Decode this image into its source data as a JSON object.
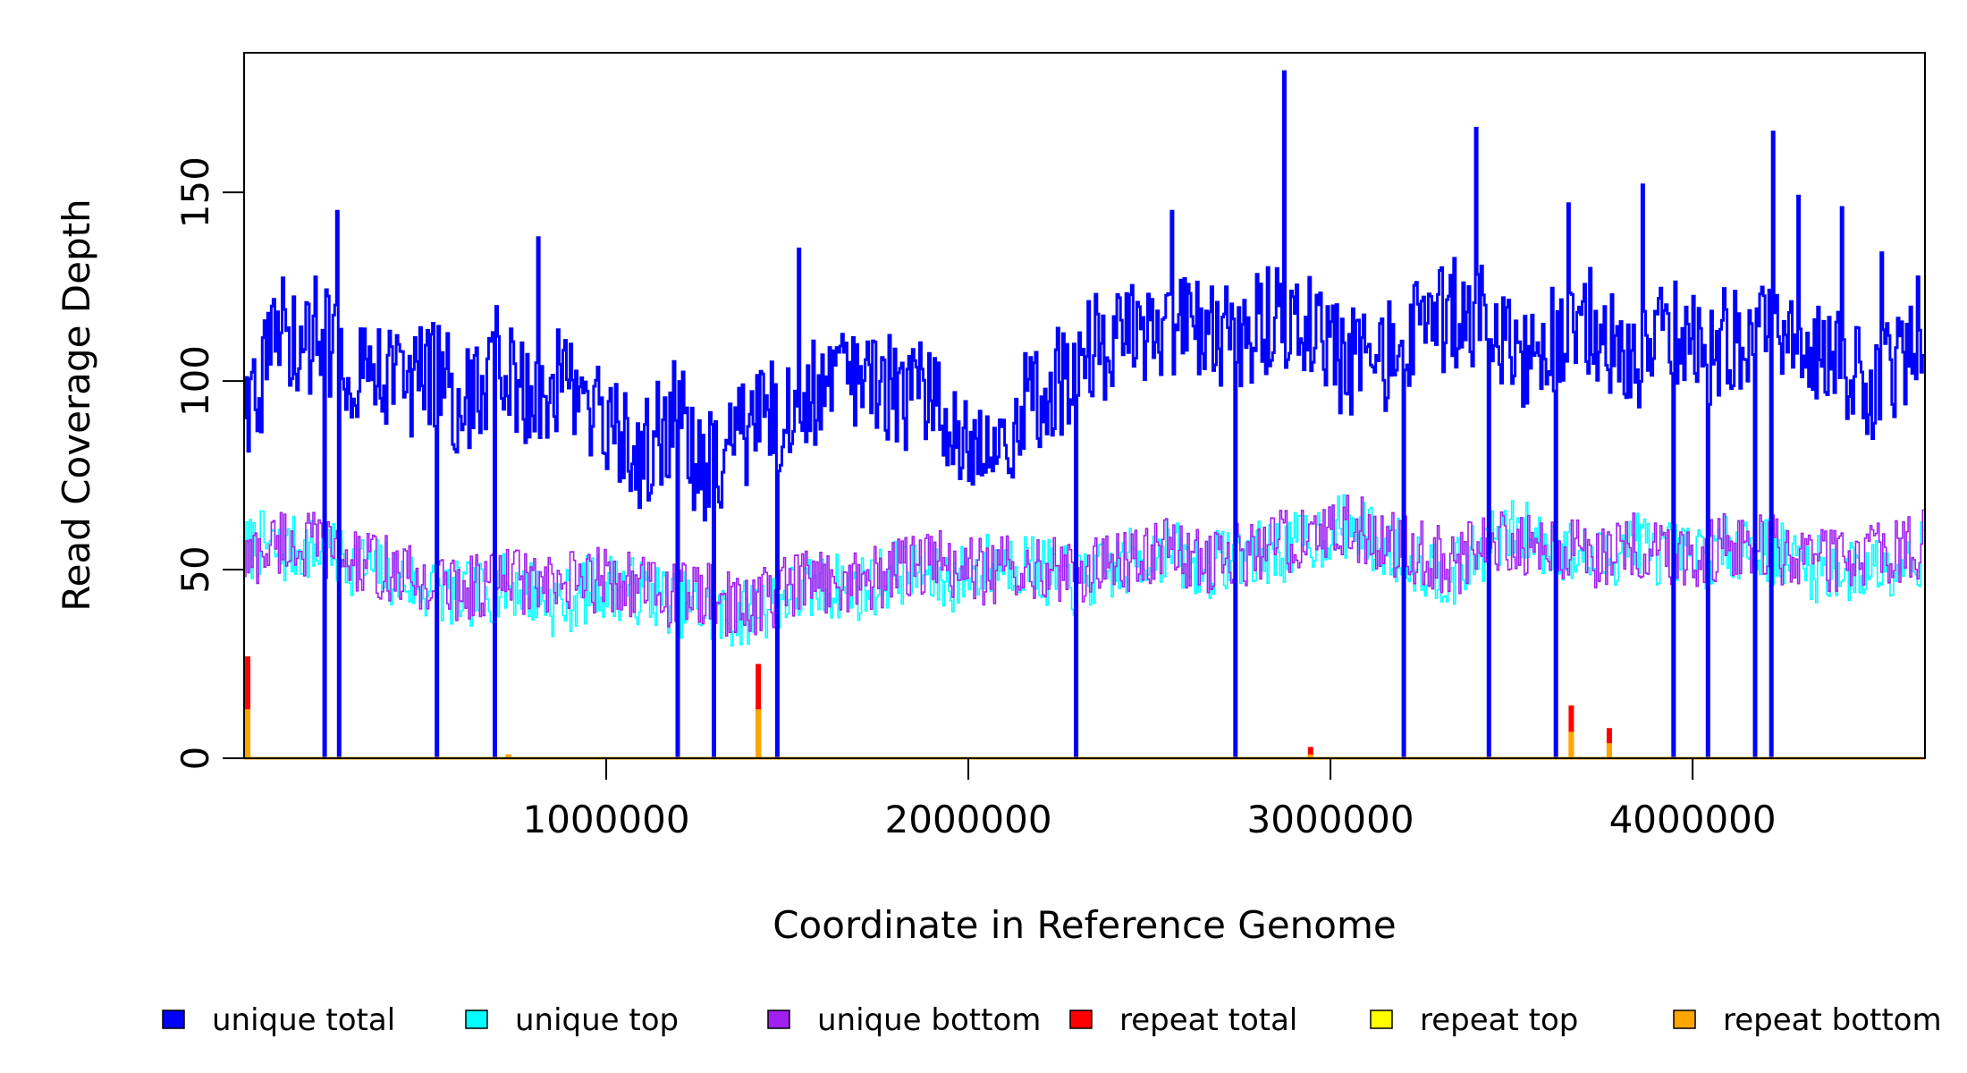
{
  "chart_data": {
    "type": "line",
    "title": "",
    "xlabel": "Coordinate in Reference Genome",
    "ylabel": "Read Coverage Depth",
    "xlim": [
      0,
      4641652
    ],
    "ylim": [
      0,
      187
    ],
    "x_ticks": [
      1000000,
      2000000,
      3000000,
      4000000
    ],
    "x_tick_labels": [
      "1000000",
      "2000000",
      "3000000",
      "4000000"
    ],
    "y_ticks": [
      0,
      50,
      100,
      150
    ],
    "y_tick_labels": [
      "0",
      "50",
      "100",
      "150"
    ],
    "bin_size": 5000,
    "legend_position": "bottom",
    "legend": [
      {
        "name": "unique total",
        "color": "#0000ff"
      },
      {
        "name": "unique top",
        "color": "#00ffff"
      },
      {
        "name": "unique bottom",
        "color": "#a020f0"
      },
      {
        "name": "repeat total",
        "color": "#ff0000"
      },
      {
        "name": "repeat top",
        "color": "#ffff00"
      },
      {
        "name": "repeat bottom",
        "color": "#ffa500"
      }
    ],
    "series": [
      {
        "name": "unique total",
        "color": "#0000ff",
        "baseline": [
          95,
          101,
          115,
          106,
          114,
          109,
          104,
          107,
          102,
          99,
          101,
          103,
          92,
          97,
          106,
          98,
          96,
          101,
          97,
          92,
          87,
          82,
          79,
          86,
          92,
          78,
          77,
          83,
          89,
          90,
          92,
          95,
          99,
          102,
          101,
          98,
          97,
          96,
          94,
          92,
          86,
          82,
          85,
          92,
          97,
          100,
          104,
          108,
          110,
          111,
          109,
          110,
          113,
          111,
          110,
          111,
          114,
          116,
          117,
          113,
          108,
          104,
          105,
          106,
          109,
          112,
          115,
          118,
          117,
          114,
          108,
          105,
          109,
          112,
          116,
          114,
          110,
          107,
          109,
          113,
          108,
          108,
          110,
          113,
          113,
          116,
          114,
          107,
          103,
          105,
          99,
          102,
          109,
          118
        ],
        "zero_dips": [
          220000,
          260000,
          530000,
          690000,
          1195000,
          1295000,
          1470000,
          2295000,
          2735000,
          3200000,
          3435000,
          3620000,
          3945000,
          4040000,
          4170000,
          4215000
        ],
        "spikes": [
          [
            255000,
            145
          ],
          [
            810000,
            138
          ],
          [
            1530000,
            135
          ],
          [
            2245000,
            114
          ],
          [
            2560000,
            145
          ],
          [
            2870000,
            182
          ],
          [
            3400000,
            167
          ],
          [
            3655000,
            147
          ],
          [
            3860000,
            152
          ],
          [
            4220000,
            166
          ],
          [
            4290000,
            149
          ],
          [
            4410000,
            146
          ],
          [
            4520000,
            134
          ]
        ]
      },
      {
        "name": "unique top",
        "color": "#00ffff",
        "baseline": [
          55,
          57,
          54,
          56,
          55,
          53,
          52,
          50,
          49,
          47,
          45,
          44,
          43,
          44,
          45,
          46,
          44,
          41,
          42,
          45,
          46,
          45,
          44,
          43,
          41,
          40,
          38,
          37,
          39,
          41,
          43,
          44,
          45,
          46,
          45,
          47,
          49,
          50,
          48,
          47,
          49,
          51,
          52,
          52,
          50,
          48,
          46,
          48,
          50,
          52,
          54,
          56,
          52,
          51,
          52,
          55,
          54,
          55,
          56,
          58,
          60,
          62,
          59,
          56,
          55,
          52,
          50,
          49,
          53,
          57,
          60,
          59,
          57,
          55,
          53,
          52,
          55,
          58,
          55,
          54,
          53,
          54,
          56,
          57,
          56,
          54,
          52,
          50,
          50,
          49,
          51,
          52,
          53,
          55
        ]
      },
      {
        "name": "unique bottom",
        "color": "#a020f0",
        "baseline": [
          52,
          55,
          58,
          56,
          57,
          55,
          52,
          51,
          50,
          48,
          46,
          46,
          45,
          46,
          47,
          48,
          46,
          44,
          46,
          47,
          48,
          47,
          45,
          44,
          43,
          44,
          42,
          40,
          41,
          43,
          45,
          46,
          47,
          48,
          47,
          48,
          50,
          51,
          52,
          51,
          50,
          49,
          50,
          52,
          51,
          50,
          49,
          51,
          52,
          53,
          55,
          56,
          54,
          52,
          52,
          54,
          55,
          57,
          58,
          59,
          60,
          61,
          60,
          57,
          56,
          55,
          53,
          52,
          55,
          58,
          58,
          57,
          56,
          55,
          54,
          54,
          56,
          57,
          56,
          55,
          54,
          55,
          56,
          57,
          56,
          55,
          54,
          53,
          53,
          52,
          53,
          55,
          56,
          57
        ]
      },
      {
        "name": "repeat total",
        "color": "#ff0000",
        "spikes": [
          [
            10000,
            27
          ],
          [
            730000,
            1
          ],
          [
            1420000,
            25
          ],
          [
            2945000,
            3
          ],
          [
            3665000,
            14
          ],
          [
            3770000,
            8
          ]
        ]
      },
      {
        "name": "repeat top",
        "color": "#ffff00",
        "spikes": [
          [
            1420000,
            12
          ],
          [
            3665000,
            7
          ]
        ]
      },
      {
        "name": "repeat bottom",
        "color": "#ffa500",
        "spikes": [
          [
            10000,
            13
          ],
          [
            730000,
            1
          ],
          [
            1420000,
            13
          ],
          [
            2945000,
            1
          ],
          [
            3665000,
            7
          ],
          [
            3770000,
            4
          ]
        ]
      }
    ]
  }
}
